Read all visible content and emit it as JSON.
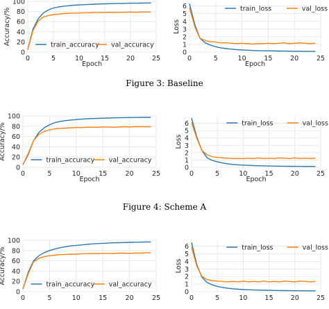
{
  "series_style": {
    "train_color": "#2a77b4",
    "val_color": "#ff7f0e",
    "grid_color": "#e5e5e5"
  },
  "figures": [
    {
      "caption": "Figure 3: Baseline",
      "charts": [
        {
          "type": "line",
          "ylabel": "Accuracy/%",
          "xlabel": "Epoch",
          "xlim": [
            0,
            25
          ],
          "ylim": [
            0,
            100
          ],
          "xticks": [
            0,
            5,
            10,
            15,
            20,
            25
          ],
          "yticks": [
            0,
            20,
            40,
            60,
            80,
            100
          ],
          "legend": "bottom-right",
          "x": [
            0,
            1,
            2,
            3,
            4,
            5,
            6,
            7,
            8,
            9,
            10,
            11,
            12,
            13,
            14,
            15,
            16,
            17,
            18,
            19,
            20,
            21,
            22,
            23,
            24
          ],
          "series": [
            {
              "name": "train_accuracy",
              "values": [
                5,
                45,
                65,
                77,
                83,
                87,
                89,
                90.5,
                91.5,
                92.5,
                93,
                93.5,
                94,
                94.5,
                95,
                95.2,
                95.5,
                95.8,
                96,
                96.2,
                96.4,
                96.5,
                96.6,
                96.8,
                97
              ]
            },
            {
              "name": "val_accuracy",
              "values": [
                5,
                42,
                61,
                69,
                72,
                74,
                75,
                76,
                76.5,
                77,
                77,
                77.5,
                77.5,
                78,
                78,
                78,
                78.5,
                78,
                78.5,
                78.5,
                79,
                78.5,
                79,
                79,
                79
              ]
            }
          ]
        },
        {
          "type": "line",
          "ylabel": "Loss",
          "xlabel": "Epoch",
          "xlim": [
            0,
            25
          ],
          "ylim": [
            0,
            6.6
          ],
          "xticks": [
            0,
            5,
            10,
            15,
            20,
            25
          ],
          "yticks": [
            0,
            1,
            2,
            3,
            4,
            5,
            6
          ],
          "legend": "top-right",
          "x": [
            0,
            1,
            2,
            3,
            4,
            5,
            6,
            7,
            8,
            9,
            10,
            11,
            12,
            13,
            14,
            15,
            16,
            17,
            18,
            19,
            20,
            21,
            22,
            23,
            24
          ],
          "series": [
            {
              "name": "train_loss",
              "values": [
                6.3,
                3.6,
                1.8,
                1.2,
                0.9,
                0.7,
                0.55,
                0.45,
                0.38,
                0.32,
                0.28,
                0.24,
                0.21,
                0.19,
                0.17,
                0.16,
                0.15,
                0.14,
                0.13,
                0.12,
                0.11,
                0.11,
                0.1,
                0.1,
                0.1
              ]
            },
            {
              "name": "val_loss",
              "values": [
                5.8,
                3.3,
                1.8,
                1.5,
                1.35,
                1.3,
                1.2,
                1.2,
                1.15,
                1.1,
                1.15,
                1.1,
                1.05,
                1.1,
                1.1,
                1.15,
                1.1,
                1.15,
                1.2,
                1.1,
                1.15,
                1.2,
                1.15,
                1.1,
                1.15
              ]
            }
          ]
        }
      ]
    },
    {
      "caption": "Figure 4: Scheme A",
      "charts": [
        {
          "type": "line",
          "ylabel": "Accuracy/%",
          "xlabel": "Epoch",
          "xlim": [
            0,
            25
          ],
          "ylim": [
            0,
            100
          ],
          "xticks": [
            0,
            5,
            10,
            15,
            20,
            25
          ],
          "yticks": [
            0,
            20,
            40,
            60,
            80,
            100
          ],
          "legend": "bottom-right",
          "x": [
            0,
            1,
            2,
            3,
            4,
            5,
            6,
            7,
            8,
            9,
            10,
            11,
            12,
            13,
            14,
            15,
            16,
            17,
            18,
            19,
            20,
            21,
            22,
            23,
            24
          ],
          "series": [
            {
              "name": "train_accuracy",
              "values": [
                5,
                25,
                52,
                68,
                77,
                83,
                87,
                89.5,
                91,
                92,
                93,
                93.8,
                94.5,
                95,
                95.3,
                95.7,
                96,
                96.3,
                96.5,
                96.7,
                96.9,
                97,
                97.1,
                97.3,
                97.5
              ]
            },
            {
              "name": "val_accuracy",
              "values": [
                5,
                27,
                52,
                64,
                70,
                73,
                75,
                76,
                76.5,
                77,
                77.5,
                77.5,
                78,
                78,
                78,
                78.5,
                78.5,
                78,
                78.5,
                79,
                78.5,
                79,
                79,
                79,
                79
              ]
            }
          ]
        },
        {
          "type": "line",
          "ylabel": "Loss",
          "xlabel": "Epoch",
          "xlim": [
            0,
            25
          ],
          "ylim": [
            0,
            7
          ],
          "xticks": [
            0,
            5,
            10,
            15,
            20,
            25
          ],
          "yticks": [
            0,
            1,
            2,
            3,
            4,
            5,
            6
          ],
          "legend": "top-right",
          "x": [
            0,
            1,
            2,
            3,
            4,
            5,
            6,
            7,
            8,
            9,
            10,
            11,
            12,
            13,
            14,
            15,
            16,
            17,
            18,
            19,
            20,
            21,
            22,
            23,
            24
          ],
          "series": [
            {
              "name": "train_loss",
              "values": [
                6.7,
                4.2,
                2.3,
                1.3,
                0.95,
                0.75,
                0.6,
                0.48,
                0.4,
                0.34,
                0.3,
                0.27,
                0.24,
                0.22,
                0.2,
                0.18,
                0.17,
                0.16,
                0.15,
                0.14,
                0.13,
                0.13,
                0.12,
                0.12,
                0.12
              ]
            },
            {
              "name": "val_loss",
              "values": [
                6.1,
                4.0,
                2.3,
                1.7,
                1.45,
                1.35,
                1.3,
                1.25,
                1.2,
                1.2,
                1.2,
                1.25,
                1.2,
                1.3,
                1.2,
                1.25,
                1.2,
                1.3,
                1.25,
                1.2,
                1.3,
                1.2,
                1.25,
                1.2,
                1.25
              ]
            }
          ]
        }
      ]
    },
    {
      "caption": "",
      "charts": [
        {
          "type": "line",
          "ylabel": "Accuracy/%",
          "xlabel": "",
          "xlim": [
            0,
            25
          ],
          "ylim": [
            0,
            100
          ],
          "xticks": [
            0,
            5,
            10,
            15,
            20,
            25
          ],
          "yticks": [
            0,
            20,
            40,
            60,
            80,
            100
          ],
          "legend": "bottom-right",
          "x": [
            0,
            1,
            2,
            3,
            4,
            5,
            6,
            7,
            8,
            9,
            10,
            11,
            12,
            13,
            14,
            15,
            16,
            17,
            18,
            19,
            20,
            21,
            22,
            23,
            24
          ],
          "series": [
            {
              "name": "train_accuracy",
              "values": [
                5,
                38,
                60,
                70,
                76,
                80,
                83,
                85.5,
                87.5,
                89,
                90,
                91,
                92,
                92.8,
                93.5,
                94,
                94.5,
                95,
                95.3,
                95.6,
                96,
                96.2,
                96.4,
                96.6,
                96.8
              ]
            },
            {
              "name": "val_accuracy",
              "values": [
                5,
                35,
                58,
                65,
                68,
                70,
                71,
                72,
                72.5,
                73,
                73,
                73.5,
                74,
                74,
                74,
                74.5,
                74.5,
                74,
                75,
                75,
                74.5,
                75,
                75,
                75.5,
                75.5
              ]
            }
          ]
        },
        {
          "type": "line",
          "ylabel": "Loss",
          "xlabel": "",
          "xlim": [
            0,
            25
          ],
          "ylim": [
            0,
            6.8
          ],
          "xticks": [
            0,
            5,
            10,
            15,
            20,
            25
          ],
          "yticks": [
            0,
            1,
            2,
            3,
            4,
            5,
            6
          ],
          "legend": "top-right",
          "x": [
            0,
            1,
            2,
            3,
            4,
            5,
            6,
            7,
            8,
            9,
            10,
            11,
            12,
            13,
            14,
            15,
            16,
            17,
            18,
            19,
            20,
            21,
            22,
            23,
            24
          ],
          "series": [
            {
              "name": "train_loss",
              "values": [
                6.5,
                3.6,
                1.9,
                1.2,
                0.9,
                0.7,
                0.55,
                0.45,
                0.38,
                0.32,
                0.28,
                0.25,
                0.22,
                0.2,
                0.18,
                0.17,
                0.16,
                0.15,
                0.14,
                0.13,
                0.12,
                0.12,
                0.11,
                0.11,
                0.11
              ]
            },
            {
              "name": "val_loss",
              "values": [
                5.9,
                3.4,
                2.0,
                1.6,
                1.45,
                1.4,
                1.35,
                1.3,
                1.35,
                1.3,
                1.4,
                1.3,
                1.35,
                1.3,
                1.4,
                1.3,
                1.35,
                1.3,
                1.4,
                1.35,
                1.3,
                1.4,
                1.35,
                1.3,
                1.35
              ]
            }
          ]
        }
      ]
    }
  ]
}
